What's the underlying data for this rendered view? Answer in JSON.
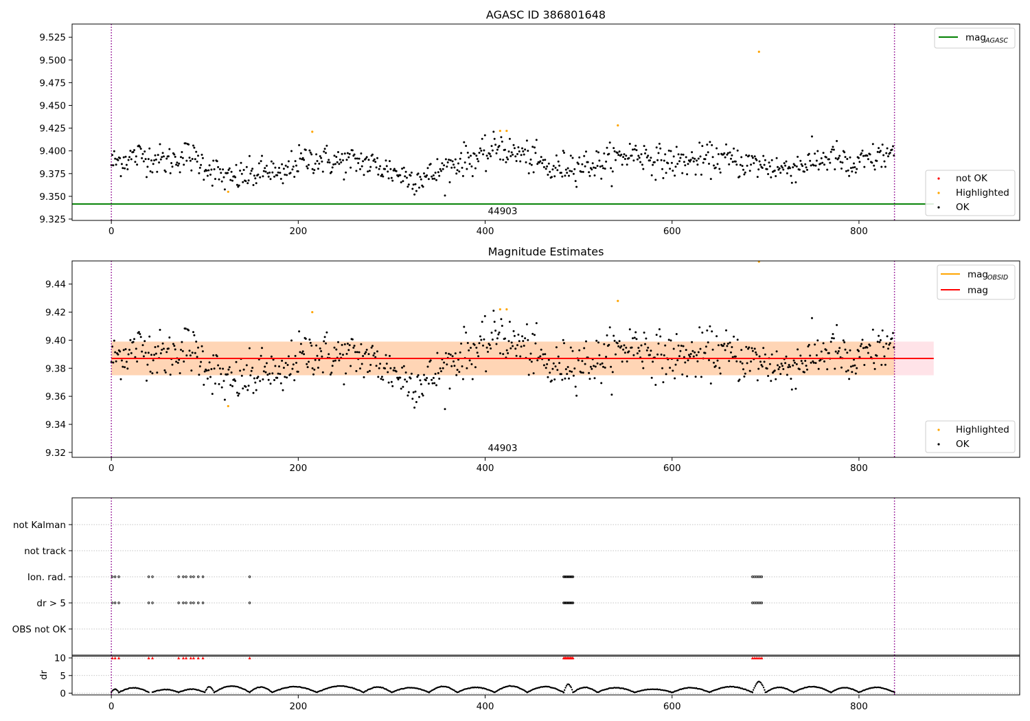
{
  "chart_data": [
    {
      "type": "scatter",
      "title": "AGASC ID 386801648",
      "xlabel": "",
      "ylabel": "",
      "xlim": [
        -42,
        972
      ],
      "ylim": [
        9.3235,
        9.5395
      ],
      "xticks": [
        "0",
        "200",
        "400",
        "600",
        "800"
      ],
      "yticks": [
        "9.325",
        "9.350",
        "9.375",
        "9.400",
        "9.425",
        "9.450",
        "9.475",
        "9.500",
        "9.525"
      ],
      "ytick_values": [
        9.325,
        9.35,
        9.375,
        9.4,
        9.425,
        9.45,
        9.475,
        9.5,
        9.525
      ],
      "vlines": [
        0,
        838
      ],
      "annotation": "44903",
      "grid": false,
      "mag_agasc": 9.3415,
      "legends": [
        {
          "position": "upper right",
          "entries": [
            {
              "label": "mag",
              "sub": "AGASC",
              "color": "#008000",
              "kind": "line"
            }
          ]
        },
        {
          "position": "lower right",
          "entries": [
            {
              "label": "not OK",
              "color": "#ff0000",
              "kind": "point"
            },
            {
              "label": "Highlighted",
              "color": "#ffa500",
              "kind": "point"
            },
            {
              "label": "OK",
              "color": "#000000",
              "kind": "point"
            }
          ]
        }
      ],
      "highlighted": [
        {
          "x": 125,
          "y": 9.355
        },
        {
          "x": 215,
          "y": 9.421
        },
        {
          "x": 416,
          "y": 9.422
        },
        {
          "x": 423,
          "y": 9.422
        },
        {
          "x": 542,
          "y": 9.428
        },
        {
          "x": 693,
          "y": 9.509
        }
      ],
      "ok_series_note": "≈820 OK points, x 0–838; trend approximated by knots",
      "ok_trend": [
        [
          0,
          9.387
        ],
        [
          30,
          9.395
        ],
        [
          45,
          9.392
        ],
        [
          60,
          9.388
        ],
        [
          80,
          9.396
        ],
        [
          95,
          9.388
        ],
        [
          110,
          9.378
        ],
        [
          125,
          9.368
        ],
        [
          140,
          9.372
        ],
        [
          155,
          9.374
        ],
        [
          170,
          9.38
        ],
        [
          180,
          9.368
        ],
        [
          195,
          9.386
        ],
        [
          215,
          9.392
        ],
        [
          240,
          9.388
        ],
        [
          270,
          9.388
        ],
        [
          300,
          9.378
        ],
        [
          320,
          9.37
        ],
        [
          340,
          9.372
        ],
        [
          360,
          9.382
        ],
        [
          375,
          9.39
        ],
        [
          400,
          9.394
        ],
        [
          415,
          9.407
        ],
        [
          425,
          9.398
        ],
        [
          440,
          9.396
        ],
        [
          460,
          9.386
        ],
        [
          470,
          9.378
        ],
        [
          490,
          9.385
        ],
        [
          520,
          9.385
        ],
        [
          560,
          9.398
        ],
        [
          590,
          9.388
        ],
        [
          620,
          9.388
        ],
        [
          650,
          9.392
        ],
        [
          680,
          9.386
        ],
        [
          700,
          9.384
        ],
        [
          720,
          9.38
        ],
        [
          750,
          9.388
        ],
        [
          775,
          9.394
        ],
        [
          790,
          9.38
        ],
        [
          810,
          9.39
        ],
        [
          838,
          9.398
        ]
      ],
      "ok_scatter_sd": 0.0085
    },
    {
      "type": "scatter",
      "title": "Magnitude Estimates",
      "xlabel": "",
      "ylabel": "",
      "xlim": [
        -42,
        972
      ],
      "ylim": [
        9.3165,
        9.4565
      ],
      "xticks": [
        "0",
        "200",
        "400",
        "600",
        "800"
      ],
      "yticks": [
        "9.32",
        "9.34",
        "9.36",
        "9.38",
        "9.40",
        "9.42",
        "9.44"
      ],
      "ytick_values": [
        9.32,
        9.34,
        9.36,
        9.38,
        9.4,
        9.42,
        9.44
      ],
      "vlines": [
        0,
        838
      ],
      "annotation": "44903",
      "grid": false,
      "mag": 9.387,
      "mag_band_outer": [
        9.375,
        9.399
      ],
      "mag_band_inner": [
        9.375,
        9.399
      ],
      "mag_band_inner_xlim": [
        0,
        838
      ],
      "mag_band_outer_xlim": [
        0,
        880
      ],
      "legends": [
        {
          "position": "upper right",
          "entries": [
            {
              "label": "mag",
              "sub": "OBSID",
              "color": "#ffa500",
              "kind": "line"
            },
            {
              "label": "mag",
              "sub": "",
              "color": "#ff0000",
              "kind": "line"
            }
          ]
        },
        {
          "position": "lower right",
          "entries": [
            {
              "label": "Highlighted",
              "color": "#ffa500",
              "kind": "point"
            },
            {
              "label": "OK",
              "color": "#000000",
              "kind": "point"
            }
          ]
        }
      ],
      "highlighted": [
        {
          "x": 125,
          "y": 9.353
        },
        {
          "x": 215,
          "y": 9.42
        },
        {
          "x": 416,
          "y": 9.422
        },
        {
          "x": 423,
          "y": 9.422
        },
        {
          "x": 542,
          "y": 9.428
        },
        {
          "x": 693,
          "y": 9.456
        }
      ]
    },
    {
      "type": "scatter",
      "title": "",
      "xlabel": "",
      "ylabel": "",
      "xlim": [
        -42,
        972
      ],
      "xticks": [
        "0",
        "200",
        "400",
        "600",
        "800"
      ],
      "categories": [
        "not Kalman",
        "not track",
        "Ion. rad.",
        "dr > 5",
        "OBS not OK"
      ],
      "vlines": [
        0,
        838
      ],
      "grid": true,
      "flags": {
        "Ion. rad.": [
          1,
          4,
          8,
          40,
          44,
          72,
          77,
          80,
          85,
          88,
          93,
          98,
          148,
          484,
          485,
          486,
          487,
          488,
          489,
          490,
          491,
          492,
          493,
          494,
          686,
          688,
          690,
          692,
          694,
          696
        ],
        "dr > 5": [
          1,
          4,
          8,
          40,
          44,
          72,
          77,
          80,
          85,
          88,
          93,
          98,
          148,
          484,
          485,
          486,
          487,
          488,
          489,
          490,
          491,
          492,
          493,
          494,
          686,
          688,
          690,
          692,
          694,
          696
        ],
        "not Kalman": [],
        "not track": [],
        "OBS not OK": []
      }
    },
    {
      "type": "scatter",
      "title": "",
      "xlabel": "",
      "ylabel": "dr",
      "xlim": [
        -42,
        972
      ],
      "ylim": [
        -0.5,
        10.8
      ],
      "xticks": [
        "0",
        "200",
        "400",
        "600",
        "800"
      ],
      "yticks": [
        "0",
        "5",
        "10"
      ],
      "ytick_values": [
        0,
        5,
        10
      ],
      "vlines": [
        0,
        838
      ],
      "hline": 10.5,
      "grid": true,
      "dr_clipped_marks": [
        1,
        4,
        8,
        40,
        44,
        72,
        77,
        80,
        85,
        88,
        93,
        98,
        148,
        484,
        485,
        486,
        487,
        488,
        489,
        490,
        491,
        492,
        493,
        494,
        686,
        688,
        690,
        692,
        694,
        696
      ],
      "dr_clipped_value": 10,
      "dr_arcs": [
        {
          "x0": 0,
          "x1": 8,
          "peak": 0.9
        },
        {
          "x0": 8,
          "x1": 40,
          "peak": 1.3
        },
        {
          "x0": 44,
          "x1": 72,
          "peak": 0.8
        },
        {
          "x0": 72,
          "x1": 100,
          "peak": 0.9
        },
        {
          "x0": 100,
          "x1": 110,
          "peak": 1.6
        },
        {
          "x0": 110,
          "x1": 148,
          "peak": 1.8
        },
        {
          "x0": 148,
          "x1": 172,
          "peak": 1.5
        },
        {
          "x0": 172,
          "x1": 220,
          "peak": 1.6
        },
        {
          "x0": 220,
          "x1": 270,
          "peak": 1.8
        },
        {
          "x0": 270,
          "x1": 300,
          "peak": 1.5
        },
        {
          "x0": 300,
          "x1": 340,
          "peak": 1.3
        },
        {
          "x0": 340,
          "x1": 370,
          "peak": 1.7
        },
        {
          "x0": 370,
          "x1": 410,
          "peak": 1.4
        },
        {
          "x0": 410,
          "x1": 445,
          "peak": 1.8
        },
        {
          "x0": 445,
          "x1": 484,
          "peak": 1.6
        },
        {
          "x0": 484,
          "x1": 494,
          "peak": 2.3
        },
        {
          "x0": 494,
          "x1": 520,
          "peak": 1.4
        },
        {
          "x0": 520,
          "x1": 560,
          "peak": 1.3
        },
        {
          "x0": 560,
          "x1": 600,
          "peak": 0.9
        },
        {
          "x0": 600,
          "x1": 640,
          "peak": 1.3
        },
        {
          "x0": 640,
          "x1": 686,
          "peak": 1.6
        },
        {
          "x0": 686,
          "x1": 700,
          "peak": 3.0
        },
        {
          "x0": 700,
          "x1": 730,
          "peak": 1.4
        },
        {
          "x0": 730,
          "x1": 770,
          "peak": 1.6
        },
        {
          "x0": 770,
          "x1": 800,
          "peak": 1.3
        },
        {
          "x0": 800,
          "x1": 838,
          "peak": 1.4
        }
      ]
    }
  ]
}
